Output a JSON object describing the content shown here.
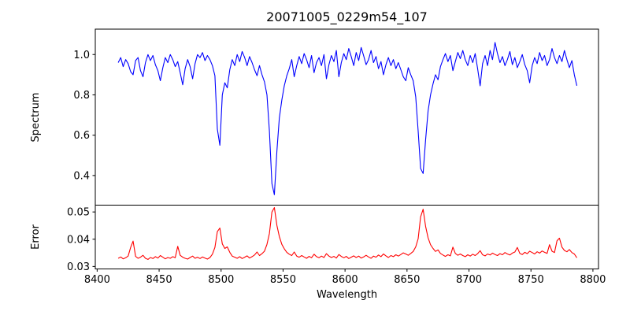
{
  "figure": {
    "background": "#ffffff",
    "frame_color": "#000000"
  },
  "chart_data": [
    {
      "type": "line",
      "series_name": "spectrum",
      "title": "20071005_0229m54_107",
      "ylabel": "Spectrum",
      "color": "#0000ff",
      "grid": false,
      "legend": null,
      "xlim": [
        8398.5,
        8804.5
      ],
      "ylim": [
        0.253,
        1.126
      ],
      "y_ticks": [
        0.4,
        0.6,
        0.8,
        1.0
      ],
      "y_tick_labels": [
        "0.4",
        "0.6",
        "0.8",
        "1.0"
      ],
      "x": {
        "start": 8417,
        "step": 2,
        "count": 186
      },
      "y": [
        0.96,
        0.985,
        0.94,
        0.975,
        0.955,
        0.915,
        0.9,
        0.97,
        0.985,
        0.92,
        0.89,
        0.96,
        1.0,
        0.97,
        0.995,
        0.95,
        0.92,
        0.87,
        0.935,
        0.985,
        0.96,
        1.0,
        0.975,
        0.94,
        0.965,
        0.91,
        0.85,
        0.93,
        0.975,
        0.94,
        0.88,
        0.955,
        1.0,
        0.985,
        1.01,
        0.97,
        0.995,
        0.975,
        0.945,
        0.895,
        0.63,
        0.55,
        0.8,
        0.86,
        0.835,
        0.925,
        0.975,
        0.945,
        1.0,
        0.965,
        1.015,
        0.985,
        0.945,
        0.99,
        0.96,
        0.925,
        0.895,
        0.945,
        0.9,
        0.865,
        0.8,
        0.62,
        0.36,
        0.305,
        0.52,
        0.685,
        0.775,
        0.845,
        0.895,
        0.93,
        0.975,
        0.89,
        0.945,
        0.99,
        0.955,
        1.005,
        0.975,
        0.935,
        0.995,
        0.91,
        0.96,
        0.985,
        0.945,
        1.0,
        0.88,
        0.95,
        0.995,
        0.965,
        1.02,
        0.89,
        0.96,
        1.005,
        0.975,
        1.03,
        0.99,
        0.945,
        1.01,
        0.97,
        1.035,
        0.995,
        0.95,
        0.975,
        1.02,
        0.96,
        0.99,
        0.93,
        0.965,
        0.9,
        0.95,
        0.985,
        0.945,
        0.975,
        0.93,
        0.96,
        0.925,
        0.89,
        0.87,
        0.935,
        0.9,
        0.87,
        0.79,
        0.62,
        0.435,
        0.41,
        0.575,
        0.72,
        0.8,
        0.855,
        0.9,
        0.875,
        0.94,
        0.975,
        1.005,
        0.965,
        0.995,
        0.92,
        0.965,
        1.01,
        0.98,
        1.02,
        0.975,
        0.945,
        0.995,
        0.96,
        1.005,
        0.93,
        0.845,
        0.955,
        0.995,
        0.945,
        1.02,
        0.975,
        1.06,
        1.005,
        0.96,
        0.99,
        0.945,
        0.975,
        1.015,
        0.95,
        0.985,
        0.935,
        0.965,
        1.0,
        0.95,
        0.92,
        0.86,
        0.945,
        0.985,
        0.955,
        1.01,
        0.97,
        0.995,
        0.945,
        0.975,
        1.03,
        0.985,
        0.955,
        0.995,
        0.965,
        1.02,
        0.975,
        0.935,
        0.97,
        0.9,
        0.845
      ]
    },
    {
      "type": "line",
      "series_name": "error",
      "ylabel": "Error",
      "xlabel": "Wavelength",
      "color": "#ff0000",
      "grid": false,
      "legend": null,
      "xlim": [
        8398.5,
        8804.5
      ],
      "ylim": [
        0.0291,
        0.0525
      ],
      "x_ticks": [
        8400,
        8450,
        8500,
        8550,
        8600,
        8650,
        8700,
        8750,
        8800
      ],
      "x_tick_labels": [
        "8400",
        "8450",
        "8500",
        "8550",
        "8600",
        "8650",
        "8700",
        "8750",
        "8800"
      ],
      "y_ticks": [
        0.03,
        0.04,
        0.05
      ],
      "y_tick_labels": [
        "0.03",
        "0.04",
        "0.05"
      ],
      "x": {
        "start": 8417,
        "step": 2,
        "count": 186
      },
      "y": [
        0.033,
        0.0335,
        0.0328,
        0.0332,
        0.0338,
        0.037,
        0.0393,
        0.0337,
        0.033,
        0.0334,
        0.0341,
        0.033,
        0.0326,
        0.0333,
        0.0329,
        0.0336,
        0.0331,
        0.034,
        0.0334,
        0.0328,
        0.0333,
        0.033,
        0.0336,
        0.0332,
        0.0374,
        0.0341,
        0.0334,
        0.033,
        0.0327,
        0.0333,
        0.0338,
        0.033,
        0.0334,
        0.0329,
        0.0335,
        0.0331,
        0.0327,
        0.0333,
        0.0345,
        0.037,
        0.0428,
        0.0441,
        0.0383,
        0.0366,
        0.0372,
        0.0352,
        0.0338,
        0.0334,
        0.033,
        0.0336,
        0.0329,
        0.0334,
        0.0339,
        0.0331,
        0.0336,
        0.0342,
        0.0353,
        0.034,
        0.0347,
        0.0356,
        0.0381,
        0.0421,
        0.05,
        0.0516,
        0.0451,
        0.041,
        0.0381,
        0.0365,
        0.0352,
        0.0345,
        0.034,
        0.0353,
        0.0338,
        0.0334,
        0.034,
        0.0335,
        0.033,
        0.0337,
        0.0332,
        0.0345,
        0.0336,
        0.0332,
        0.0338,
        0.0333,
        0.0347,
        0.0338,
        0.0333,
        0.0337,
        0.0331,
        0.0344,
        0.0337,
        0.0332,
        0.0337,
        0.0329,
        0.0334,
        0.0339,
        0.0333,
        0.0338,
        0.0331,
        0.0335,
        0.0341,
        0.0335,
        0.033,
        0.0338,
        0.0334,
        0.0342,
        0.0336,
        0.0346,
        0.0339,
        0.0333,
        0.034,
        0.0336,
        0.0343,
        0.0338,
        0.0344,
        0.035,
        0.0346,
        0.0341,
        0.0348,
        0.0355,
        0.0372,
        0.0402,
        0.0482,
        0.051,
        0.0448,
        0.0405,
        0.038,
        0.0366,
        0.0355,
        0.0361,
        0.0348,
        0.0342,
        0.0337,
        0.0343,
        0.0339,
        0.0371,
        0.0348,
        0.0341,
        0.0346,
        0.034,
        0.0336,
        0.0343,
        0.0338,
        0.0345,
        0.034,
        0.0347,
        0.0358,
        0.0343,
        0.0339,
        0.0346,
        0.0342,
        0.0349,
        0.0344,
        0.034,
        0.0347,
        0.0343,
        0.0351,
        0.0346,
        0.0342,
        0.0349,
        0.0353,
        0.037,
        0.0348,
        0.0344,
        0.0352,
        0.0347,
        0.0356,
        0.0351,
        0.0346,
        0.0354,
        0.0349,
        0.0357,
        0.0352,
        0.0348,
        0.038,
        0.0356,
        0.0351,
        0.0394,
        0.0404,
        0.0371,
        0.0359,
        0.0354,
        0.0362,
        0.0351,
        0.0346,
        0.0332
      ]
    }
  ]
}
